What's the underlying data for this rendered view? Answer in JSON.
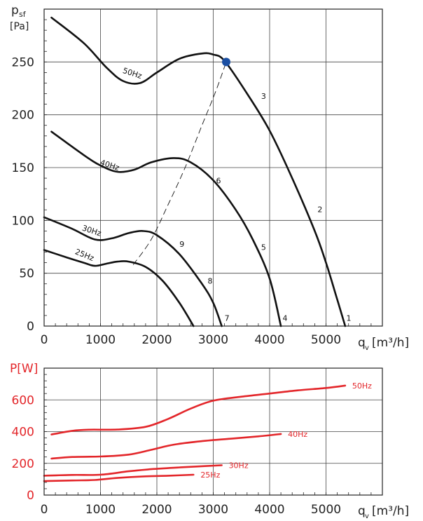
{
  "chart_data": [
    {
      "type": "line",
      "ylabel": "p",
      "ylabel_sub": "sf",
      "yunit": "[Pa]",
      "xlabel": "q",
      "xlabel_sub": "v",
      "xunit": "[m³/h]",
      "xlim": [
        0,
        6000
      ],
      "ylim": [
        0,
        300
      ],
      "grid": true,
      "x_ticks": [
        "0",
        "1000",
        "2000",
        "3000",
        "4000",
        "5000"
      ],
      "y_ticks": [
        "0",
        "50",
        "100",
        "150",
        "200",
        "250"
      ],
      "series": [
        {
          "name": "50Hz",
          "points": [
            [
              130,
              292
            ],
            [
              700,
              268
            ],
            [
              1100,
              245
            ],
            [
              1400,
              232
            ],
            [
              1700,
              230
            ],
            [
              2000,
              240
            ],
            [
              2400,
              253
            ],
            [
              2800,
              258
            ],
            [
              3000,
              257
            ],
            [
              3200,
              251
            ],
            [
              3600,
              220
            ],
            [
              4000,
              185
            ],
            [
              4400,
              140
            ],
            [
              4800,
              90
            ],
            [
              5000,
              60
            ],
            [
              5200,
              25
            ],
            [
              5340,
              0
            ]
          ]
        },
        {
          "name": "40Hz",
          "points": [
            [
              130,
              184
            ],
            [
              700,
              162
            ],
            [
              1000,
              152
            ],
            [
              1300,
              146
            ],
            [
              1600,
              148
            ],
            [
              1900,
              155
            ],
            [
              2300,
              159
            ],
            [
              2600,
              155
            ],
            [
              3000,
              138
            ],
            [
              3400,
              110
            ],
            [
              3700,
              82
            ],
            [
              4000,
              45
            ],
            [
              4200,
              0
            ]
          ]
        },
        {
          "name": "30Hz",
          "points": [
            [
              0,
              103
            ],
            [
              500,
              92
            ],
            [
              900,
              82
            ],
            [
              1200,
              83
            ],
            [
              1500,
              88
            ],
            [
              1750,
              90
            ],
            [
              2000,
              86
            ],
            [
              2400,
              68
            ],
            [
              2800,
              40
            ],
            [
              3000,
              22
            ],
            [
              3150,
              0
            ]
          ]
        },
        {
          "name": "25Hz",
          "points": [
            [
              0,
              72
            ],
            [
              400,
              65
            ],
            [
              700,
              60
            ],
            [
              900,
              57
            ],
            [
              1100,
              59
            ],
            [
              1300,
              61
            ],
            [
              1500,
              61
            ],
            [
              1800,
              56
            ],
            [
              2100,
              43
            ],
            [
              2400,
              22
            ],
            [
              2650,
              0
            ]
          ]
        }
      ],
      "system_curve": {
        "points": [
          [
            1580,
            58
          ],
          [
            1900,
            82
          ],
          [
            2200,
            115
          ],
          [
            2500,
            150
          ],
          [
            2800,
            190
          ],
          [
            3050,
            223
          ],
          [
            3230,
            250
          ]
        ]
      },
      "operating_point": {
        "x": 3230,
        "y": 250
      },
      "points_labels": [
        {
          "label": "1",
          "x": 5360,
          "y": 5
        },
        {
          "label": "2",
          "x": 4850,
          "y": 108
        },
        {
          "label": "3",
          "x": 3850,
          "y": 215
        },
        {
          "label": "4",
          "x": 4230,
          "y": 5
        },
        {
          "label": "5",
          "x": 3850,
          "y": 72
        },
        {
          "label": "6",
          "x": 3050,
          "y": 135
        },
        {
          "label": "7",
          "x": 3200,
          "y": 5
        },
        {
          "label": "8",
          "x": 2900,
          "y": 40
        },
        {
          "label": "9",
          "x": 2400,
          "y": 75
        }
      ]
    },
    {
      "type": "line",
      "ylabel": "P[W]",
      "xlabel": "q",
      "xlabel_sub": "v",
      "xunit": "[m³/h]",
      "xlim": [
        0,
        6000
      ],
      "ylim": [
        0,
        800
      ],
      "grid": true,
      "x_ticks": [
        "0",
        "1000",
        "2000",
        "3000",
        "4000",
        "5000"
      ],
      "y_ticks": [
        "0",
        "200",
        "400",
        "600"
      ],
      "series": [
        {
          "name": "50Hz",
          "points": [
            [
              130,
              382
            ],
            [
              500,
              405
            ],
            [
              800,
              412
            ],
            [
              1300,
              413
            ],
            [
              1800,
              430
            ],
            [
              2200,
              480
            ],
            [
              2600,
              545
            ],
            [
              3000,
              595
            ],
            [
              3500,
              620
            ],
            [
              4000,
              640
            ],
            [
              4500,
              660
            ],
            [
              5000,
              675
            ],
            [
              5340,
              690
            ]
          ]
        },
        {
          "name": "40Hz",
          "points": [
            [
              130,
              230
            ],
            [
              500,
              240
            ],
            [
              1000,
              243
            ],
            [
              1500,
              255
            ],
            [
              1900,
              285
            ],
            [
              2300,
              318
            ],
            [
              2800,
              340
            ],
            [
              3300,
              355
            ],
            [
              3800,
              370
            ],
            [
              4200,
              385
            ]
          ]
        },
        {
          "name": "30Hz",
          "points": [
            [
              0,
              122
            ],
            [
              500,
              127
            ],
            [
              1000,
              128
            ],
            [
              1500,
              150
            ],
            [
              1900,
              163
            ],
            [
              2300,
              172
            ],
            [
              2700,
              180
            ],
            [
              3150,
              188
            ]
          ]
        },
        {
          "name": "25Hz",
          "points": [
            [
              0,
              88
            ],
            [
              500,
              92
            ],
            [
              900,
              95
            ],
            [
              1300,
              108
            ],
            [
              1800,
              118
            ],
            [
              2200,
              122
            ],
            [
              2650,
              128
            ]
          ]
        }
      ]
    }
  ]
}
